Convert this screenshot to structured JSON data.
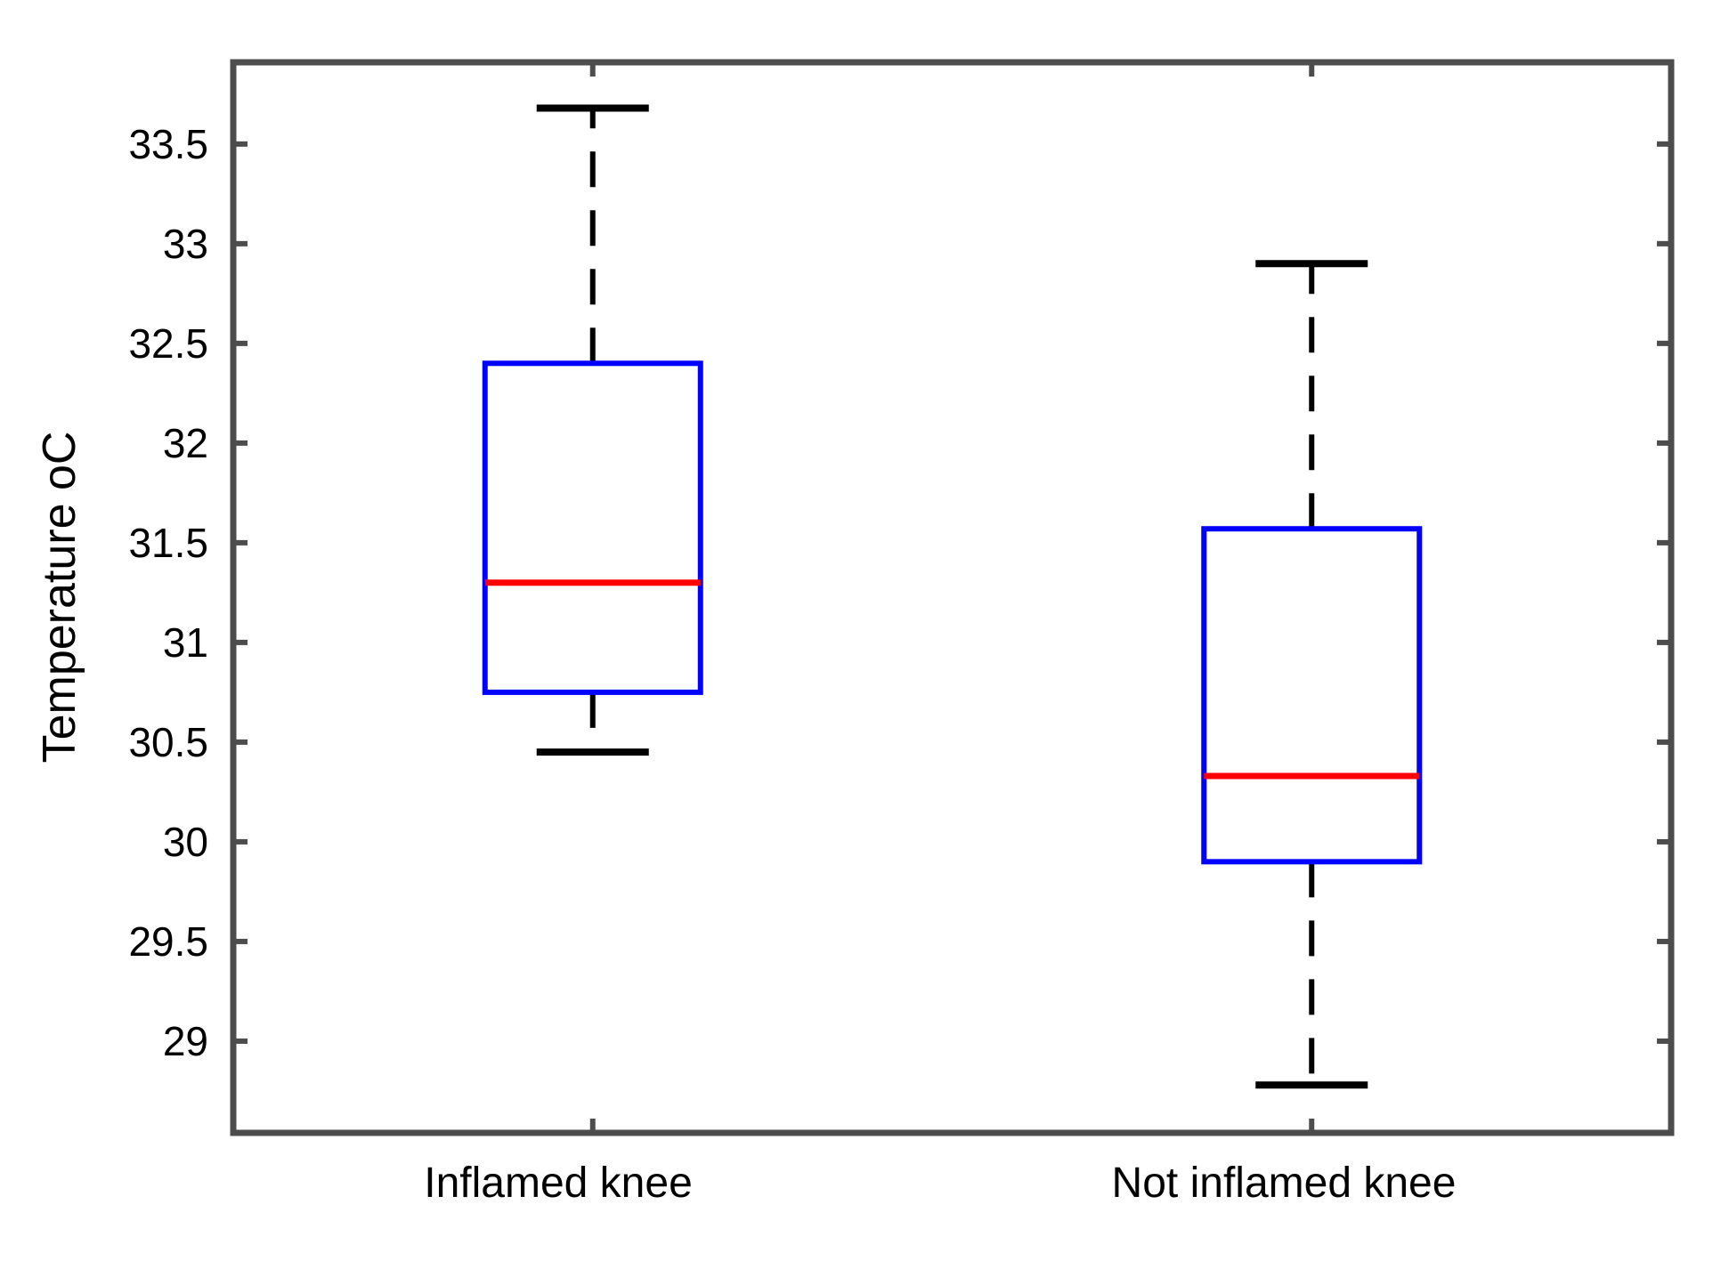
{
  "chart_data": {
    "type": "boxplot",
    "ylabel": "Temperature oC",
    "categories": [
      "Inflamed knee",
      "Not inflamed knee"
    ],
    "series": [
      {
        "name": "Inflamed knee",
        "whisker_low": 30.45,
        "q1": 30.75,
        "median": 31.3,
        "q3": 32.4,
        "whisker_high": 33.68,
        "outliers": []
      },
      {
        "name": "Not inflamed knee",
        "whisker_low": 28.78,
        "q1": 29.9,
        "median": 30.33,
        "q3": 31.57,
        "whisker_high": 32.9,
        "outliers": []
      }
    ],
    "yticks": [
      29,
      29.5,
      30,
      30.5,
      31,
      31.5,
      32,
      32.5,
      33,
      33.5
    ],
    "ylim": [
      28.54,
      33.91
    ],
    "grid": false,
    "legend_position": "none",
    "colors": {
      "box": "#0000ff",
      "median": "#ff0000",
      "whisker": "#000000",
      "cap": "#000000",
      "frame": "#4d4d4d",
      "text": "#000000"
    }
  }
}
